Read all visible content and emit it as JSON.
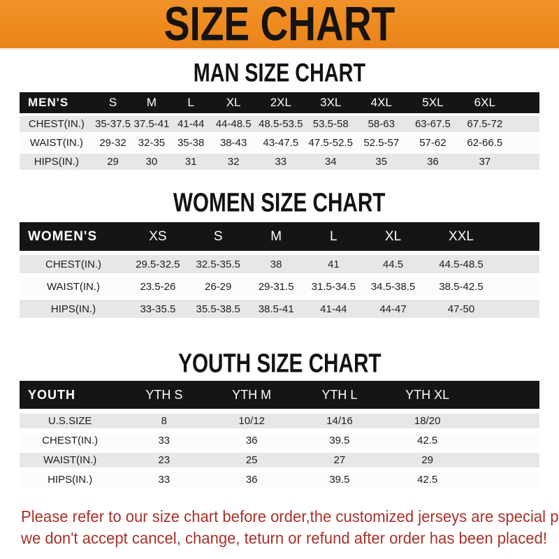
{
  "banner": {
    "title": "SIZE CHART"
  },
  "colors": {
    "banner_bg": "#EE8B1E",
    "banner_text": "#161310",
    "header_bar_bg": "#151515",
    "header_bar_text": "#FFFFFF",
    "row_gray": "#E7E7E7",
    "row_white": "#FBFBFB",
    "footer_text": "#A93128"
  },
  "tables": [
    {
      "id": "men",
      "title": "MAN SIZE CHART",
      "corner_label": "MEN'S",
      "columns": [
        "S",
        "M",
        "L",
        "XL",
        "2XL",
        "3XL",
        "4XL",
        "5XL",
        "6XL"
      ],
      "rows": [
        {
          "label": "CHEST(IN.)",
          "values": [
            "35-37.5",
            "37.5-41",
            "41-44",
            "44-48.5",
            "48.5-53.5",
            "53.5-58",
            "58-63",
            "63-67.5",
            "67.5-72"
          ]
        },
        {
          "label": "WAIST(IN.)",
          "values": [
            "29-32",
            "32-35",
            "35-38",
            "38-43",
            "43-47.5",
            "47.5-52.5",
            "52.5-57",
            "57-62",
            "62-66.5"
          ]
        },
        {
          "label": "HIPS(IN.)",
          "values": [
            "29",
            "30",
            "31",
            "32",
            "33",
            "34",
            "35",
            "36",
            "37"
          ]
        }
      ]
    },
    {
      "id": "women",
      "title": "WOMEN SIZE CHART",
      "corner_label": "WOMEN'S",
      "columns": [
        "XS",
        "S",
        "M",
        "L",
        "XL",
        "XXL"
      ],
      "rows": [
        {
          "label": "CHEST(IN.)",
          "values": [
            "29.5-32.5",
            "32.5-35.5",
            "38",
            "41",
            "44.5",
            "44.5-48.5"
          ]
        },
        {
          "label": "WAIST(IN.)",
          "values": [
            "23.5-26",
            "26-29",
            "29-31.5",
            "31.5-34.5",
            "34.5-38.5",
            "38.5-42.5"
          ]
        },
        {
          "label": "HIPS(IN.)",
          "values": [
            "33-35.5",
            "35.5-38.5",
            "38.5-41",
            "41-44",
            "44-47",
            "47-50"
          ]
        }
      ]
    },
    {
      "id": "youth",
      "title": "YOUTH SIZE CHART",
      "corner_label": "YOUTH",
      "columns": [
        "YTH S",
        "YTH M",
        "YTH L",
        "YTH XL"
      ],
      "rows": [
        {
          "label": "U.S.SIZE",
          "values": [
            "8",
            "10/12",
            "14/16",
            "18/20"
          ]
        },
        {
          "label": "CHEST(IN.)",
          "values": [
            "33",
            "36",
            "39.5",
            "42.5"
          ]
        },
        {
          "label": "WAIST(IN.)",
          "values": [
            "23",
            "25",
            "27",
            "29"
          ]
        },
        {
          "label": "HIPS(IN.)",
          "values": [
            "33",
            "36",
            "39.5",
            "42.5"
          ]
        }
      ]
    }
  ],
  "footer": {
    "line1": "Please refer to our size chart before order,the customized jerseys are special products,",
    "line2": "we don't accept cancel, change, teturn or refund after order has been placed!"
  }
}
